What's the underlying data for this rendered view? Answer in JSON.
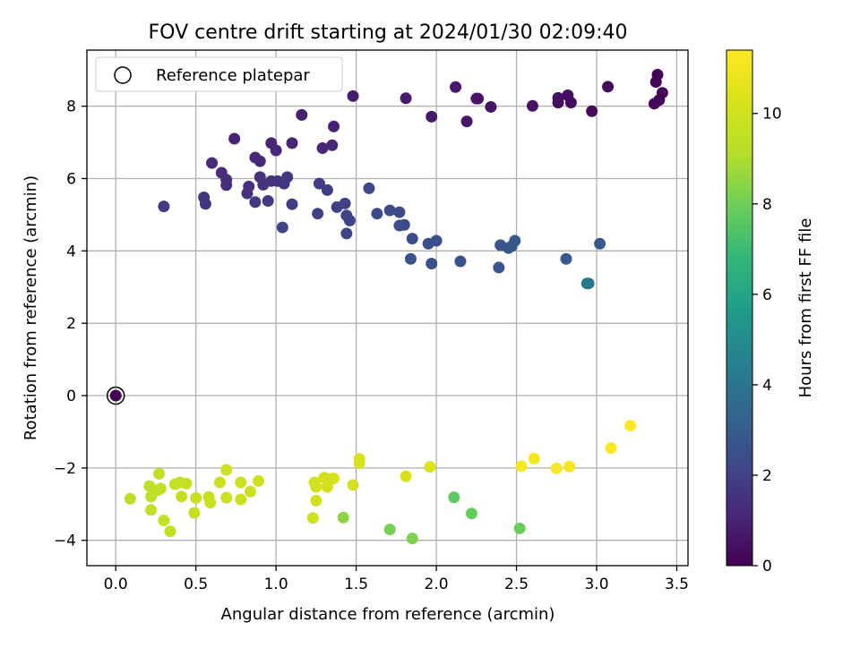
{
  "chart_data": {
    "type": "scatter",
    "title": "FOV centre drift starting at 2024/01/30 02:09:40",
    "xlabel": "Angular distance from reference (arcmin)",
    "ylabel": "Rotation from reference (arcmin)",
    "xlim": [
      -0.18,
      3.57
    ],
    "ylim": [
      -4.7,
      9.55
    ],
    "xticks": [
      "0.0",
      "0.5",
      "1.0",
      "1.5",
      "2.0",
      "2.5",
      "3.0",
      "3.5"
    ],
    "xtick_values": [
      0,
      0.5,
      1,
      1.5,
      2,
      2.5,
      3,
      3.5
    ],
    "yticks": [
      "−4",
      "−2",
      "0",
      "2",
      "4",
      "6",
      "8"
    ],
    "ytick_values": [
      -4,
      -2,
      0,
      2,
      4,
      6,
      8
    ],
    "grid": true,
    "legend": {
      "position": "top-left",
      "entries": [
        "Reference platepar"
      ]
    },
    "colorbar": {
      "label": "Hours from first FF file",
      "range": [
        0,
        11.4
      ],
      "ticks": [
        "0",
        "2",
        "4",
        "6",
        "8",
        "10"
      ],
      "tick_values": [
        0,
        2,
        4,
        6,
        8,
        10
      ],
      "colormap": "viridis"
    },
    "reference_point": {
      "x": 0.0,
      "y": 0.0,
      "c": 0.0
    },
    "points": [
      {
        "x": 3.38,
        "y": 8.87,
        "c": 0.1
      },
      {
        "x": 3.37,
        "y": 8.67,
        "c": 0.1
      },
      {
        "x": 3.41,
        "y": 8.37,
        "c": 0.1
      },
      {
        "x": 3.39,
        "y": 8.17,
        "c": 0.1
      },
      {
        "x": 3.36,
        "y": 8.07,
        "c": 0.15
      },
      {
        "x": 3.07,
        "y": 8.54,
        "c": 0.2
      },
      {
        "x": 2.97,
        "y": 7.86,
        "c": 0.3
      },
      {
        "x": 2.84,
        "y": 8.1,
        "c": 0.35
      },
      {
        "x": 2.82,
        "y": 8.3,
        "c": 0.4
      },
      {
        "x": 2.76,
        "y": 8.1,
        "c": 0.4
      },
      {
        "x": 2.76,
        "y": 8.23,
        "c": 0.45
      },
      {
        "x": 2.6,
        "y": 8.01,
        "c": 0.5
      },
      {
        "x": 2.34,
        "y": 7.98,
        "c": 0.55
      },
      {
        "x": 2.26,
        "y": 8.21,
        "c": 0.6
      },
      {
        "x": 2.25,
        "y": 8.21,
        "c": 0.6
      },
      {
        "x": 2.19,
        "y": 7.58,
        "c": 0.65
      },
      {
        "x": 2.12,
        "y": 8.53,
        "c": 0.7
      },
      {
        "x": 1.97,
        "y": 7.71,
        "c": 0.75
      },
      {
        "x": 1.81,
        "y": 8.22,
        "c": 0.8
      },
      {
        "x": 1.48,
        "y": 8.28,
        "c": 0.85
      },
      {
        "x": 1.16,
        "y": 7.76,
        "c": 0.9
      },
      {
        "x": 1.36,
        "y": 7.44,
        "c": 0.95
      },
      {
        "x": 0.74,
        "y": 7.1,
        "c": 1.0
      },
      {
        "x": 0.97,
        "y": 6.98,
        "c": 1.05
      },
      {
        "x": 1.1,
        "y": 6.98,
        "c": 1.05
      },
      {
        "x": 1.35,
        "y": 6.92,
        "c": 1.1
      },
      {
        "x": 1.29,
        "y": 6.84,
        "c": 1.1
      },
      {
        "x": 1.0,
        "y": 6.78,
        "c": 1.15
      },
      {
        "x": 0.87,
        "y": 6.58,
        "c": 1.2
      },
      {
        "x": 0.9,
        "y": 6.48,
        "c": 1.2
      },
      {
        "x": 0.6,
        "y": 6.43,
        "c": 1.25
      },
      {
        "x": 0.66,
        "y": 6.16,
        "c": 1.3
      },
      {
        "x": 0.69,
        "y": 5.97,
        "c": 1.35
      },
      {
        "x": 0.69,
        "y": 5.82,
        "c": 1.35
      },
      {
        "x": 0.83,
        "y": 5.78,
        "c": 1.4
      },
      {
        "x": 0.82,
        "y": 5.59,
        "c": 1.45
      },
      {
        "x": 0.9,
        "y": 6.04,
        "c": 1.5
      },
      {
        "x": 0.92,
        "y": 5.83,
        "c": 1.5
      },
      {
        "x": 0.97,
        "y": 5.93,
        "c": 1.55
      },
      {
        "x": 1.01,
        "y": 5.93,
        "c": 1.55
      },
      {
        "x": 1.05,
        "y": 5.86,
        "c": 1.6
      },
      {
        "x": 1.07,
        "y": 6.04,
        "c": 1.6
      },
      {
        "x": 0.55,
        "y": 5.48,
        "c": 1.65
      },
      {
        "x": 0.56,
        "y": 5.3,
        "c": 1.65
      },
      {
        "x": 0.3,
        "y": 5.23,
        "c": 1.7
      },
      {
        "x": 0.87,
        "y": 5.35,
        "c": 1.75
      },
      {
        "x": 0.95,
        "y": 5.38,
        "c": 1.75
      },
      {
        "x": 1.1,
        "y": 5.29,
        "c": 1.8
      },
      {
        "x": 1.27,
        "y": 5.86,
        "c": 1.85
      },
      {
        "x": 1.32,
        "y": 5.68,
        "c": 1.9
      },
      {
        "x": 1.38,
        "y": 5.21,
        "c": 1.95
      },
      {
        "x": 1.26,
        "y": 5.03,
        "c": 2.0
      },
      {
        "x": 1.43,
        "y": 5.31,
        "c": 2.0
      },
      {
        "x": 1.44,
        "y": 4.98,
        "c": 2.05
      },
      {
        "x": 1.46,
        "y": 4.84,
        "c": 2.05
      },
      {
        "x": 1.04,
        "y": 4.65,
        "c": 2.1
      },
      {
        "x": 1.44,
        "y": 4.48,
        "c": 2.15
      },
      {
        "x": 1.58,
        "y": 5.73,
        "c": 2.2
      },
      {
        "x": 1.63,
        "y": 5.03,
        "c": 2.25
      },
      {
        "x": 1.71,
        "y": 5.12,
        "c": 2.3
      },
      {
        "x": 1.77,
        "y": 5.07,
        "c": 2.35
      },
      {
        "x": 1.77,
        "y": 4.7,
        "c": 2.4
      },
      {
        "x": 1.8,
        "y": 4.72,
        "c": 2.4
      },
      {
        "x": 1.85,
        "y": 4.34,
        "c": 2.45
      },
      {
        "x": 1.95,
        "y": 4.2,
        "c": 2.5
      },
      {
        "x": 2.0,
        "y": 4.28,
        "c": 2.5
      },
      {
        "x": 1.84,
        "y": 3.78,
        "c": 2.55
      },
      {
        "x": 1.97,
        "y": 3.65,
        "c": 2.6
      },
      {
        "x": 2.15,
        "y": 3.71,
        "c": 2.6
      },
      {
        "x": 2.39,
        "y": 3.54,
        "c": 2.65
      },
      {
        "x": 2.4,
        "y": 4.16,
        "c": 2.7
      },
      {
        "x": 2.45,
        "y": 4.08,
        "c": 2.75
      },
      {
        "x": 2.47,
        "y": 4.13,
        "c": 2.75
      },
      {
        "x": 2.49,
        "y": 4.28,
        "c": 2.8
      },
      {
        "x": 2.81,
        "y": 3.78,
        "c": 2.85
      },
      {
        "x": 3.02,
        "y": 4.2,
        "c": 2.9
      },
      {
        "x": 2.95,
        "y": 3.1,
        "c": 4.0
      },
      {
        "x": 2.94,
        "y": 3.1,
        "c": 4.1
      },
      {
        "x": 2.11,
        "y": -2.81,
        "c": 7.7
      },
      {
        "x": 2.22,
        "y": -3.26,
        "c": 7.8
      },
      {
        "x": 2.52,
        "y": -3.67,
        "c": 7.9
      },
      {
        "x": 1.71,
        "y": -3.7,
        "c": 8.1
      },
      {
        "x": 1.85,
        "y": -3.95,
        "c": 8.2
      },
      {
        "x": 1.42,
        "y": -3.37,
        "c": 8.5
      },
      {
        "x": 0.09,
        "y": -2.85,
        "c": 9.3
      },
      {
        "x": 0.21,
        "y": -2.5,
        "c": 9.4
      },
      {
        "x": 0.22,
        "y": -2.79,
        "c": 9.4
      },
      {
        "x": 0.22,
        "y": -3.16,
        "c": 9.5
      },
      {
        "x": 0.26,
        "y": -2.62,
        "c": 9.5
      },
      {
        "x": 0.27,
        "y": -2.16,
        "c": 9.5
      },
      {
        "x": 0.28,
        "y": -2.57,
        "c": 9.55
      },
      {
        "x": 0.3,
        "y": -3.45,
        "c": 9.55
      },
      {
        "x": 0.34,
        "y": -3.75,
        "c": 9.6
      },
      {
        "x": 0.37,
        "y": -2.45,
        "c": 9.6
      },
      {
        "x": 0.4,
        "y": -2.4,
        "c": 9.6
      },
      {
        "x": 0.41,
        "y": -2.79,
        "c": 9.65
      },
      {
        "x": 0.44,
        "y": -2.43,
        "c": 9.65
      },
      {
        "x": 0.49,
        "y": -3.24,
        "c": 9.7
      },
      {
        "x": 0.5,
        "y": -2.83,
        "c": 9.7
      },
      {
        "x": 0.58,
        "y": -2.8,
        "c": 9.7
      },
      {
        "x": 0.59,
        "y": -2.96,
        "c": 9.75
      },
      {
        "x": 0.65,
        "y": -2.4,
        "c": 9.75
      },
      {
        "x": 0.69,
        "y": -2.05,
        "c": 9.8
      },
      {
        "x": 0.69,
        "y": -2.82,
        "c": 9.8
      },
      {
        "x": 0.78,
        "y": -2.4,
        "c": 9.8
      },
      {
        "x": 0.78,
        "y": -2.87,
        "c": 9.85
      },
      {
        "x": 0.84,
        "y": -2.65,
        "c": 9.85
      },
      {
        "x": 0.89,
        "y": -2.36,
        "c": 9.9
      },
      {
        "x": 1.23,
        "y": -3.38,
        "c": 9.95
      },
      {
        "x": 1.24,
        "y": -2.4,
        "c": 10.0
      },
      {
        "x": 1.25,
        "y": -2.52,
        "c": 10.0
      },
      {
        "x": 1.25,
        "y": -2.9,
        "c": 10.05
      },
      {
        "x": 1.3,
        "y": -2.27,
        "c": 10.05
      },
      {
        "x": 1.32,
        "y": -2.52,
        "c": 10.1
      },
      {
        "x": 1.34,
        "y": -2.3,
        "c": 10.1
      },
      {
        "x": 1.36,
        "y": -2.29,
        "c": 10.15
      },
      {
        "x": 1.48,
        "y": -2.47,
        "c": 10.15
      },
      {
        "x": 1.52,
        "y": -1.75,
        "c": 10.2
      },
      {
        "x": 1.52,
        "y": -1.87,
        "c": 10.2
      },
      {
        "x": 1.81,
        "y": -2.23,
        "c": 10.3
      },
      {
        "x": 1.96,
        "y": -1.97,
        "c": 10.4
      },
      {
        "x": 2.53,
        "y": -1.95,
        "c": 11.1
      },
      {
        "x": 2.61,
        "y": -1.74,
        "c": 11.15
      },
      {
        "x": 2.75,
        "y": -2.01,
        "c": 11.2
      },
      {
        "x": 2.83,
        "y": -1.96,
        "c": 11.25
      },
      {
        "x": 3.09,
        "y": -1.45,
        "c": 11.3
      },
      {
        "x": 3.21,
        "y": -0.83,
        "c": 11.4
      }
    ]
  }
}
